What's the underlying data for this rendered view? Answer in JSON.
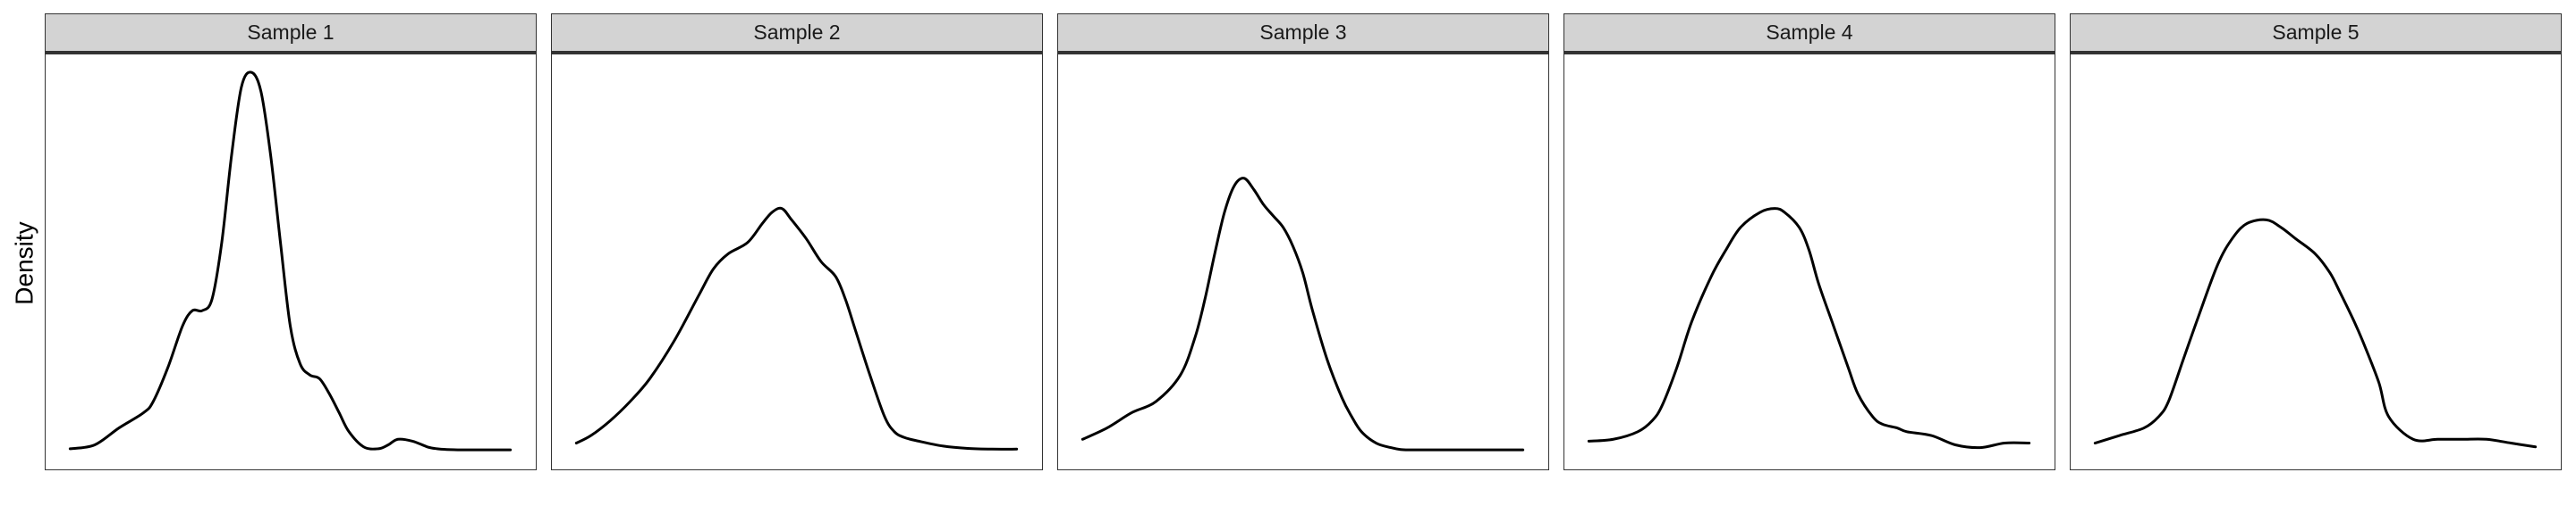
{
  "chart_data": {
    "type": "line",
    "subtype": "density",
    "layout": "facet-row",
    "xlabel": "",
    "ylabel": "Density",
    "xlim": [
      0,
      1
    ],
    "ylim": [
      0,
      1
    ],
    "grid": false,
    "line_color": "#000000",
    "strip_color": "#d3d3d3",
    "panels": [
      {
        "title": "Sample 1",
        "x": [
          0.05,
          0.1,
          0.15,
          0.2,
          0.22,
          0.25,
          0.28,
          0.3,
          0.32,
          0.34,
          0.36,
          0.38,
          0.4,
          0.42,
          0.44,
          0.46,
          0.48,
          0.5,
          0.52,
          0.54,
          0.56,
          0.58,
          0.6,
          0.62,
          0.65,
          0.68,
          0.7,
          0.72,
          0.75,
          0.78,
          0.8,
          0.82,
          0.85,
          0.88,
          0.9,
          0.92,
          0.95
        ],
        "y": [
          0.005,
          0.015,
          0.06,
          0.1,
          0.13,
          0.22,
          0.33,
          0.37,
          0.37,
          0.4,
          0.55,
          0.78,
          0.96,
          1.0,
          0.95,
          0.78,
          0.55,
          0.33,
          0.23,
          0.2,
          0.19,
          0.15,
          0.1,
          0.05,
          0.01,
          0.005,
          0.015,
          0.03,
          0.025,
          0.01,
          0.005,
          0.003,
          0.002,
          0.002,
          0.002,
          0.002,
          0.002
        ]
      },
      {
        "title": "Sample 2",
        "x": [
          0.05,
          0.08,
          0.12,
          0.16,
          0.2,
          0.25,
          0.3,
          0.33,
          0.36,
          0.4,
          0.43,
          0.45,
          0.47,
          0.49,
          0.52,
          0.55,
          0.58,
          0.6,
          0.62,
          0.65,
          0.68,
          0.7,
          0.72,
          0.75,
          0.8,
          0.85,
          0.9,
          0.95
        ],
        "y": [
          0.02,
          0.04,
          0.08,
          0.13,
          0.19,
          0.29,
          0.41,
          0.48,
          0.52,
          0.55,
          0.6,
          0.63,
          0.64,
          0.61,
          0.56,
          0.5,
          0.46,
          0.4,
          0.32,
          0.2,
          0.09,
          0.05,
          0.035,
          0.025,
          0.012,
          0.006,
          0.004,
          0.004
        ]
      },
      {
        "title": "Sample 3",
        "x": [
          0.05,
          0.1,
          0.15,
          0.2,
          0.25,
          0.28,
          0.3,
          0.32,
          0.34,
          0.36,
          0.38,
          0.4,
          0.42,
          0.44,
          0.46,
          0.48,
          0.5,
          0.52,
          0.55,
          0.58,
          0.6,
          0.62,
          0.65,
          0.68,
          0.7,
          0.72,
          0.75,
          0.8,
          0.85,
          0.9,
          0.95
        ],
        "y": [
          0.03,
          0.06,
          0.1,
          0.13,
          0.2,
          0.3,
          0.4,
          0.52,
          0.63,
          0.7,
          0.72,
          0.69,
          0.65,
          0.62,
          0.59,
          0.54,
          0.47,
          0.37,
          0.24,
          0.14,
          0.09,
          0.05,
          0.02,
          0.008,
          0.003,
          0.002,
          0.002,
          0.002,
          0.002,
          0.002,
          0.002
        ]
      },
      {
        "title": "Sample 4",
        "x": [
          0.05,
          0.1,
          0.15,
          0.18,
          0.2,
          0.23,
          0.26,
          0.3,
          0.33,
          0.36,
          0.4,
          0.43,
          0.45,
          0.48,
          0.5,
          0.52,
          0.55,
          0.58,
          0.6,
          0.63,
          0.65,
          0.68,
          0.7,
          0.75,
          0.8,
          0.85,
          0.9,
          0.95
        ],
        "y": [
          0.025,
          0.03,
          0.05,
          0.08,
          0.12,
          0.22,
          0.34,
          0.46,
          0.53,
          0.59,
          0.63,
          0.64,
          0.63,
          0.59,
          0.53,
          0.44,
          0.33,
          0.22,
          0.15,
          0.09,
          0.07,
          0.06,
          0.05,
          0.04,
          0.015,
          0.008,
          0.02,
          0.02
        ]
      },
      {
        "title": "Sample 5",
        "x": [
          0.05,
          0.1,
          0.15,
          0.18,
          0.2,
          0.23,
          0.26,
          0.3,
          0.33,
          0.36,
          0.4,
          0.43,
          0.46,
          0.5,
          0.53,
          0.55,
          0.58,
          0.6,
          0.63,
          0.65,
          0.7,
          0.75,
          0.8,
          0.85,
          0.9,
          0.95
        ],
        "y": [
          0.02,
          0.04,
          0.06,
          0.09,
          0.13,
          0.24,
          0.35,
          0.49,
          0.56,
          0.6,
          0.61,
          0.59,
          0.56,
          0.52,
          0.47,
          0.42,
          0.34,
          0.28,
          0.18,
          0.09,
          0.03,
          0.03,
          0.03,
          0.03,
          0.02,
          0.01
        ]
      }
    ]
  }
}
